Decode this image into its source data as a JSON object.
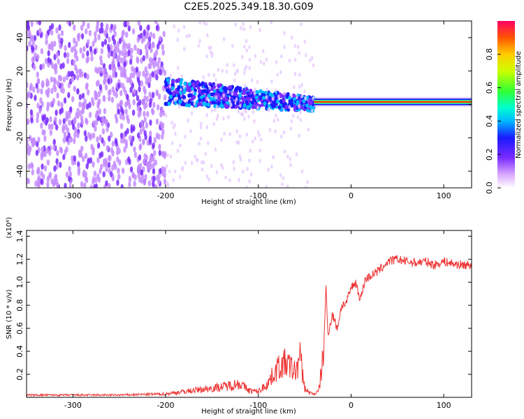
{
  "title": "C2E5.2025.349.18.30.G09",
  "chart_data": [
    {
      "type": "heatmap",
      "name": "spectrogram",
      "xlabel": "Height of straight line (km)",
      "ylabel": "Frequency (Hz)",
      "xlim": [
        -350,
        130
      ],
      "ylim": [
        -50,
        50
      ],
      "x_ticks": [
        -300,
        -200,
        -100,
        0,
        100
      ],
      "x_tick_labels": [
        "-300",
        "-200",
        "-100",
        "0",
        "100"
      ],
      "y_ticks": [
        -40,
        -20,
        0,
        20,
        40
      ],
      "y_tick_labels": [
        "-40",
        "-20",
        "0",
        "20",
        "40"
      ],
      "colorbar": {
        "label": "Normalized spectral amplitude",
        "range": [
          0,
          1
        ],
        "ticks": [
          0.0,
          0.2,
          0.4,
          0.6,
          0.8
        ],
        "tick_labels": [
          "0.0",
          "0.2",
          "0.4",
          "0.6",
          "0.8"
        ]
      },
      "description_segments": [
        {
          "x_range": [
            -350,
            -200
          ],
          "kind": "broadband noise",
          "freq_range": [
            -50,
            50
          ]
        },
        {
          "x_range": [
            -200,
            -40
          ],
          "kind": "spreading signal",
          "center_freq": [
            8,
            0
          ],
          "spread": 8
        },
        {
          "x_range": [
            -40,
            130
          ],
          "kind": "narrow carrier",
          "center_freq": 1.5,
          "spread": 2
        }
      ]
    },
    {
      "type": "line",
      "name": "snr",
      "xlabel": "Height of straight line (km)",
      "ylabel": "SNR (10 * v/v)",
      "multiplier": "(x10⁴)",
      "xlim": [
        -350,
        130
      ],
      "ylim": [
        0,
        1.45
      ],
      "x_ticks": [
        -300,
        -200,
        -100,
        0,
        100
      ],
      "x_tick_labels": [
        "-300",
        "-200",
        "-100",
        "0",
        "100"
      ],
      "y_ticks": [
        0.2,
        0.4,
        0.6,
        0.8,
        1.0,
        1.2,
        1.4
      ],
      "y_tick_labels": [
        "0.2",
        "0.4",
        "0.6",
        "0.8",
        "1.0",
        "1.2",
        "1.4"
      ],
      "color": "#ee3333",
      "x": [
        -350,
        -300,
        -250,
        -200,
        -180,
        -160,
        -140,
        -120,
        -110,
        -100,
        -90,
        -80,
        -70,
        -60,
        -55,
        -50,
        -45,
        -40,
        -35,
        -30,
        -27,
        -25,
        -20,
        -15,
        -10,
        -5,
        0,
        5,
        10,
        15,
        20,
        30,
        40,
        50,
        60,
        70,
        80,
        90,
        100,
        110,
        120,
        130
      ],
      "values": [
        0.02,
        0.02,
        0.02,
        0.03,
        0.05,
        0.07,
        0.09,
        0.12,
        0.06,
        0.05,
        0.12,
        0.25,
        0.3,
        0.22,
        0.35,
        0.08,
        0.04,
        0.03,
        0.05,
        0.35,
        0.95,
        0.55,
        0.72,
        0.6,
        0.8,
        0.82,
        0.95,
        1.0,
        0.85,
        1.02,
        1.05,
        1.1,
        1.18,
        1.2,
        1.18,
        1.17,
        1.18,
        1.15,
        1.18,
        1.16,
        1.15,
        1.15
      ]
    }
  ]
}
